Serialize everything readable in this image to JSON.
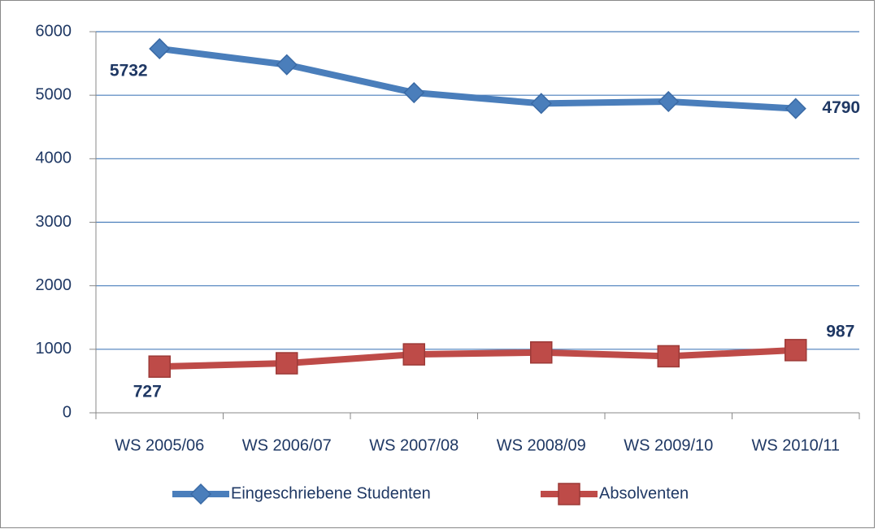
{
  "chart_data": {
    "type": "line",
    "categories": [
      "WS 2005/06",
      "WS 2006/07",
      "WS 2007/08",
      "WS 2008/09",
      "WS 2009/10",
      "WS 2010/11"
    ],
    "series": [
      {
        "name": "Eingeschriebene Studenten",
        "color": "#4a7ebb",
        "values": [
          5732,
          5480,
          5040,
          4870,
          4900,
          4790
        ]
      },
      {
        "name": "Absolventen",
        "color": "#be4b48",
        "values": [
          727,
          780,
          920,
          950,
          890,
          987
        ]
      }
    ],
    "ylim": [
      0,
      6000
    ],
    "yticks": [
      0,
      1000,
      2000,
      3000,
      4000,
      5000,
      6000
    ],
    "grid": true,
    "legend": "bottom"
  }
}
